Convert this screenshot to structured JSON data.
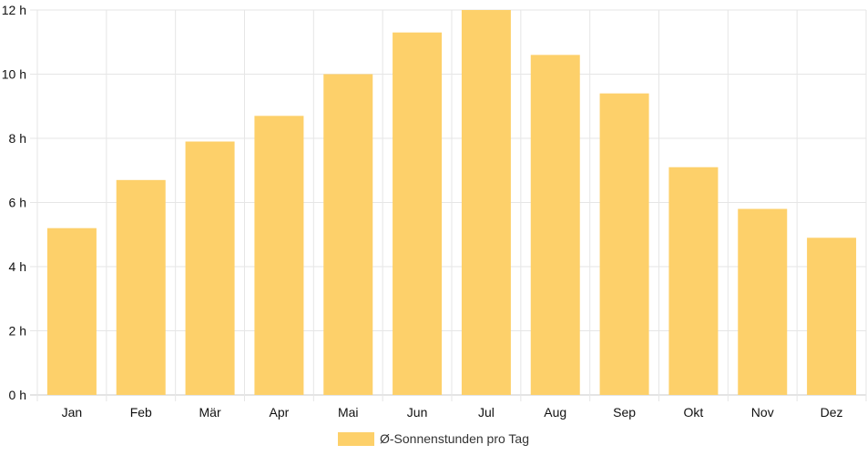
{
  "chart_data": {
    "type": "bar",
    "categories": [
      "Jan",
      "Feb",
      "Mär",
      "Apr",
      "Mai",
      "Jun",
      "Jul",
      "Aug",
      "Sep",
      "Okt",
      "Nov",
      "Dez"
    ],
    "series": [
      {
        "name": "Ø-Sonnenstunden pro Tag",
        "values": [
          5.2,
          6.7,
          7.9,
          8.7,
          10.0,
          11.3,
          12.0,
          10.6,
          9.4,
          7.1,
          5.8,
          4.9
        ],
        "color": "#fdd06a"
      }
    ],
    "ylim": [
      0,
      12
    ],
    "yticks": [
      0,
      2,
      4,
      6,
      8,
      10,
      12
    ],
    "ytick_suffix": " h",
    "grid": true,
    "legend_position": "bottom"
  }
}
